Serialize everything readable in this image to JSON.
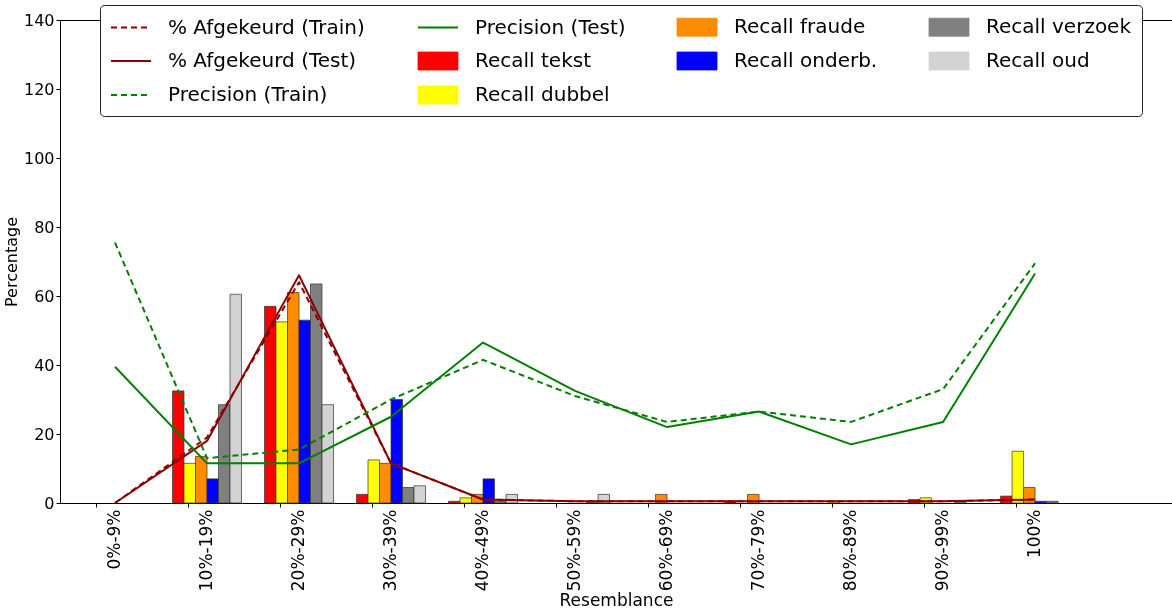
{
  "chart_data": {
    "type": "bar",
    "xlabel": "Resemblance",
    "ylabel": "Percentage",
    "categories": [
      "0%-9%",
      "10%-19%",
      "20%-29%",
      "30%-39%",
      "40%-49%",
      "50%-59%",
      "60%-69%",
      "70%-79%",
      "80%-89%",
      "90%-99%",
      "100%"
    ],
    "ylim": [
      0,
      140
    ],
    "yticks": [
      0,
      20,
      40,
      60,
      80,
      100,
      120,
      140
    ],
    "legend": "top",
    "series": [
      {
        "name": "% Afgekeurd (Train)",
        "type": "line",
        "line_style": "dashed",
        "color": "#8b0000",
        "values": [
          0,
          19,
          64,
          11.5,
          1,
          0.5,
          0.5,
          0.5,
          0.5,
          0.5,
          1
        ]
      },
      {
        "name": "% Afgekeurd (Test)",
        "type": "line",
        "line_style": "solid",
        "color": "#8b0000",
        "values": [
          0,
          18,
          66,
          11.5,
          1,
          0.5,
          0.5,
          0.5,
          0.5,
          0.5,
          1
        ]
      },
      {
        "name": "Precision (Train)",
        "type": "line",
        "line_style": "dashed",
        "color": "#008000",
        "values": [
          75.5,
          13,
          15.5,
          30,
          41.5,
          31,
          23.5,
          26.5,
          23.5,
          33,
          69.5
        ]
      },
      {
        "name": "Precision (Test)",
        "type": "line",
        "line_style": "solid",
        "color": "#008000",
        "values": [
          39.5,
          11.5,
          11.5,
          25,
          46.5,
          32.5,
          22,
          26.5,
          17,
          23.5,
          66.5
        ]
      },
      {
        "name": "Recall tekst",
        "color": "#ff0000",
        "values": [
          null,
          32.5,
          57,
          2.5,
          0.5,
          null,
          null,
          0.5,
          null,
          1,
          2
        ]
      },
      {
        "name": "Recall dubbel",
        "color": "#ffff00",
        "values": [
          null,
          11.5,
          52.5,
          12.5,
          1.5,
          null,
          null,
          null,
          0.5,
          1.5,
          15
        ]
      },
      {
        "name": "Recall fraude",
        "color": "#ff8c00",
        "values": [
          null,
          13.5,
          61,
          11.5,
          2.5,
          null,
          2.5,
          2.5,
          null,
          null,
          4.5
        ]
      },
      {
        "name": "Recall onderb.",
        "color": "#0000ff",
        "values": [
          null,
          7,
          53,
          30,
          7,
          null,
          null,
          null,
          null,
          null,
          0.5
        ]
      },
      {
        "name": "Recall verzoek",
        "color": "#808080",
        "values": [
          null,
          28.5,
          63.5,
          4.5,
          0.5,
          0.5,
          null,
          null,
          null,
          0.5,
          0.5
        ]
      },
      {
        "name": "Recall oud",
        "color": "#d3d3d3",
        "values": [
          null,
          60.5,
          28.5,
          5,
          2.5,
          2.5,
          null,
          null,
          null,
          null,
          null
        ]
      }
    ]
  }
}
